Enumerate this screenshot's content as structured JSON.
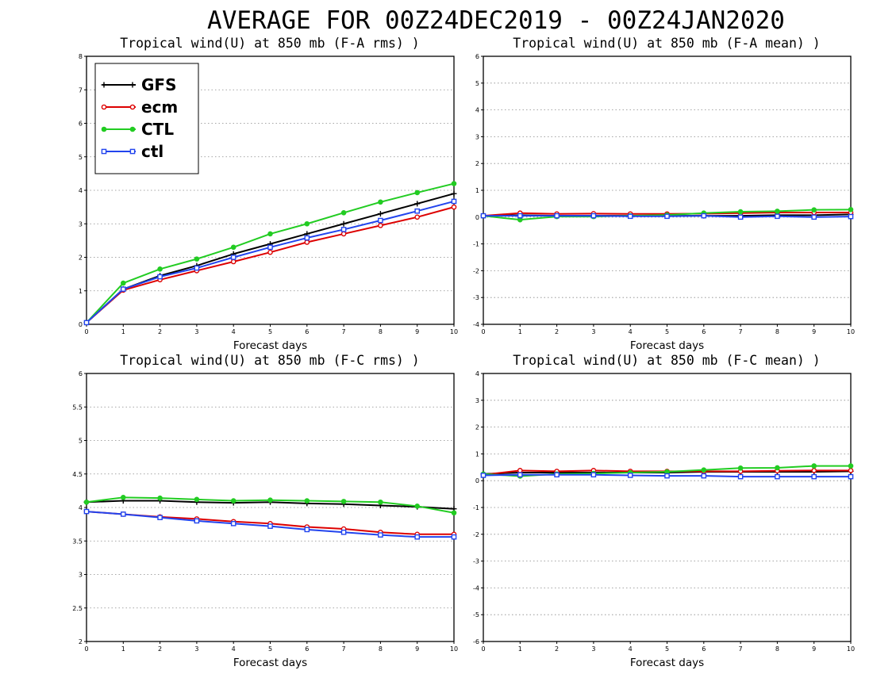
{
  "title": "AVERAGE FOR 00Z24DEC2019 - 00Z24JAN2020",
  "colors": {
    "GFS": "#000000",
    "ecm": "#dd0000",
    "CTL": "#22cc22",
    "ctl": "#2244ee"
  },
  "legend": {
    "placement": "top-left of first panel",
    "entries": [
      {
        "name": "GFS",
        "marker": "plus"
      },
      {
        "name": "ecm",
        "marker": "open-circle"
      },
      {
        "name": "CTL",
        "marker": "filled-circle"
      },
      {
        "name": "ctl",
        "marker": "open-square"
      }
    ]
  },
  "chart_data": [
    {
      "type": "line",
      "title": "Tropical wind(U) at 850 mb (F-A rms) )",
      "xlabel": "Forecast days",
      "ylabel": "",
      "x": [
        0,
        1,
        2,
        3,
        4,
        5,
        6,
        7,
        8,
        9,
        10
      ],
      "xticks": [
        "0",
        "1",
        "2",
        "3",
        "4",
        "5",
        "6",
        "7",
        "8",
        "9",
        "10"
      ],
      "ylim": [
        0,
        8
      ],
      "yticks": [
        "0",
        "1",
        "2",
        "3",
        "4",
        "5",
        "6",
        "7",
        "8"
      ],
      "grid": "horizontal dotted",
      "series": [
        {
          "name": "GFS",
          "values": [
            0.05,
            1.05,
            1.45,
            1.75,
            2.1,
            2.4,
            2.7,
            3.0,
            3.3,
            3.6,
            3.9
          ]
        },
        {
          "name": "ecm",
          "values": [
            0.05,
            1.02,
            1.33,
            1.6,
            1.87,
            2.15,
            2.45,
            2.7,
            2.95,
            3.2,
            3.5
          ]
        },
        {
          "name": "CTL",
          "values": [
            0.05,
            1.23,
            1.65,
            1.95,
            2.3,
            2.7,
            3.0,
            3.33,
            3.65,
            3.93,
            4.2
          ]
        },
        {
          "name": "ctl",
          "values": [
            0.05,
            1.05,
            1.42,
            1.68,
            2.0,
            2.3,
            2.58,
            2.83,
            3.1,
            3.38,
            3.67
          ]
        }
      ]
    },
    {
      "type": "line",
      "title": "Tropical wind(U) at 850 mb (F-A mean) )",
      "xlabel": "Forecast days",
      "ylabel": "",
      "x": [
        0,
        1,
        2,
        3,
        4,
        5,
        6,
        7,
        8,
        9,
        10
      ],
      "xticks": [
        "0",
        "1",
        "2",
        "3",
        "4",
        "5",
        "6",
        "7",
        "8",
        "9",
        "10"
      ],
      "ylim": [
        -4,
        6
      ],
      "yticks": [
        "-4",
        "-3",
        "-2",
        "-1",
        "0",
        "1",
        "2",
        "3",
        "4",
        "5",
        "6"
      ],
      "grid": "horizontal dotted",
      "series": [
        {
          "name": "GFS",
          "values": [
            0.05,
            0.07,
            0.05,
            0.05,
            0.05,
            0.05,
            0.05,
            0.05,
            0.07,
            0.07,
            0.1
          ]
        },
        {
          "name": "ecm",
          "values": [
            0.05,
            0.15,
            0.12,
            0.13,
            0.12,
            0.12,
            0.13,
            0.15,
            0.17,
            0.17,
            0.17
          ]
        },
        {
          "name": "CTL",
          "values": [
            0.05,
            -0.1,
            0.02,
            0.02,
            0.05,
            0.08,
            0.15,
            0.2,
            0.22,
            0.27,
            0.28
          ]
        },
        {
          "name": "ctl",
          "values": [
            0.05,
            0.05,
            0.05,
            0.05,
            0.03,
            0.03,
            0.05,
            0.0,
            0.03,
            0.0,
            0.02
          ]
        }
      ]
    },
    {
      "type": "line",
      "title": "Tropical wind(U) at 850 mb (F-C rms) )",
      "xlabel": "Forecast days",
      "ylabel": "",
      "x": [
        0,
        1,
        2,
        3,
        4,
        5,
        6,
        7,
        8,
        9,
        10
      ],
      "xticks": [
        "0",
        "1",
        "2",
        "3",
        "4",
        "5",
        "6",
        "7",
        "8",
        "9",
        "10"
      ],
      "ylim": [
        2,
        6
      ],
      "yticks": [
        "2",
        "2.5",
        "3",
        "3.5",
        "4",
        "4.5",
        "5",
        "5.5",
        "6"
      ],
      "grid": "horizontal dotted",
      "series": [
        {
          "name": "GFS",
          "values": [
            4.08,
            4.1,
            4.1,
            4.08,
            4.07,
            4.08,
            4.06,
            4.05,
            4.03,
            4.01,
            3.98
          ]
        },
        {
          "name": "ecm",
          "values": [
            3.94,
            3.9,
            3.86,
            3.83,
            3.79,
            3.76,
            3.71,
            3.68,
            3.63,
            3.6,
            3.6
          ]
        },
        {
          "name": "CTL",
          "values": [
            4.08,
            4.15,
            4.14,
            4.12,
            4.1,
            4.11,
            4.1,
            4.09,
            4.08,
            4.02,
            3.92
          ]
        },
        {
          "name": "ctl",
          "values": [
            3.94,
            3.9,
            3.85,
            3.8,
            3.76,
            3.72,
            3.67,
            3.63,
            3.59,
            3.56,
            3.56
          ]
        }
      ]
    },
    {
      "type": "line",
      "title": "Tropical wind(U) at 850 mb (F-C mean) )",
      "xlabel": "Forecast days",
      "ylabel": "",
      "x": [
        0,
        1,
        2,
        3,
        4,
        5,
        6,
        7,
        8,
        9,
        10
      ],
      "xticks": [
        "0",
        "1",
        "2",
        "3",
        "4",
        "5",
        "6",
        "7",
        "8",
        "9",
        "10"
      ],
      "ylim": [
        -6,
        4
      ],
      "yticks": [
        "-6",
        "-5",
        "-4",
        "-3",
        "-2",
        "-1",
        "0",
        "1",
        "2",
        "3",
        "4"
      ],
      "grid": "horizontal dotted",
      "series": [
        {
          "name": "GFS",
          "values": [
            0.25,
            0.3,
            0.3,
            0.3,
            0.3,
            0.3,
            0.33,
            0.33,
            0.33,
            0.33,
            0.35
          ]
        },
        {
          "name": "ecm",
          "values": [
            0.22,
            0.38,
            0.35,
            0.38,
            0.35,
            0.35,
            0.35,
            0.35,
            0.37,
            0.38,
            0.38
          ]
        },
        {
          "name": "CTL",
          "values": [
            0.25,
            0.17,
            0.25,
            0.27,
            0.3,
            0.33,
            0.4,
            0.47,
            0.48,
            0.55,
            0.55
          ]
        },
        {
          "name": "ctl",
          "values": [
            0.2,
            0.22,
            0.22,
            0.22,
            0.2,
            0.18,
            0.18,
            0.15,
            0.15,
            0.15,
            0.15
          ]
        }
      ]
    }
  ]
}
